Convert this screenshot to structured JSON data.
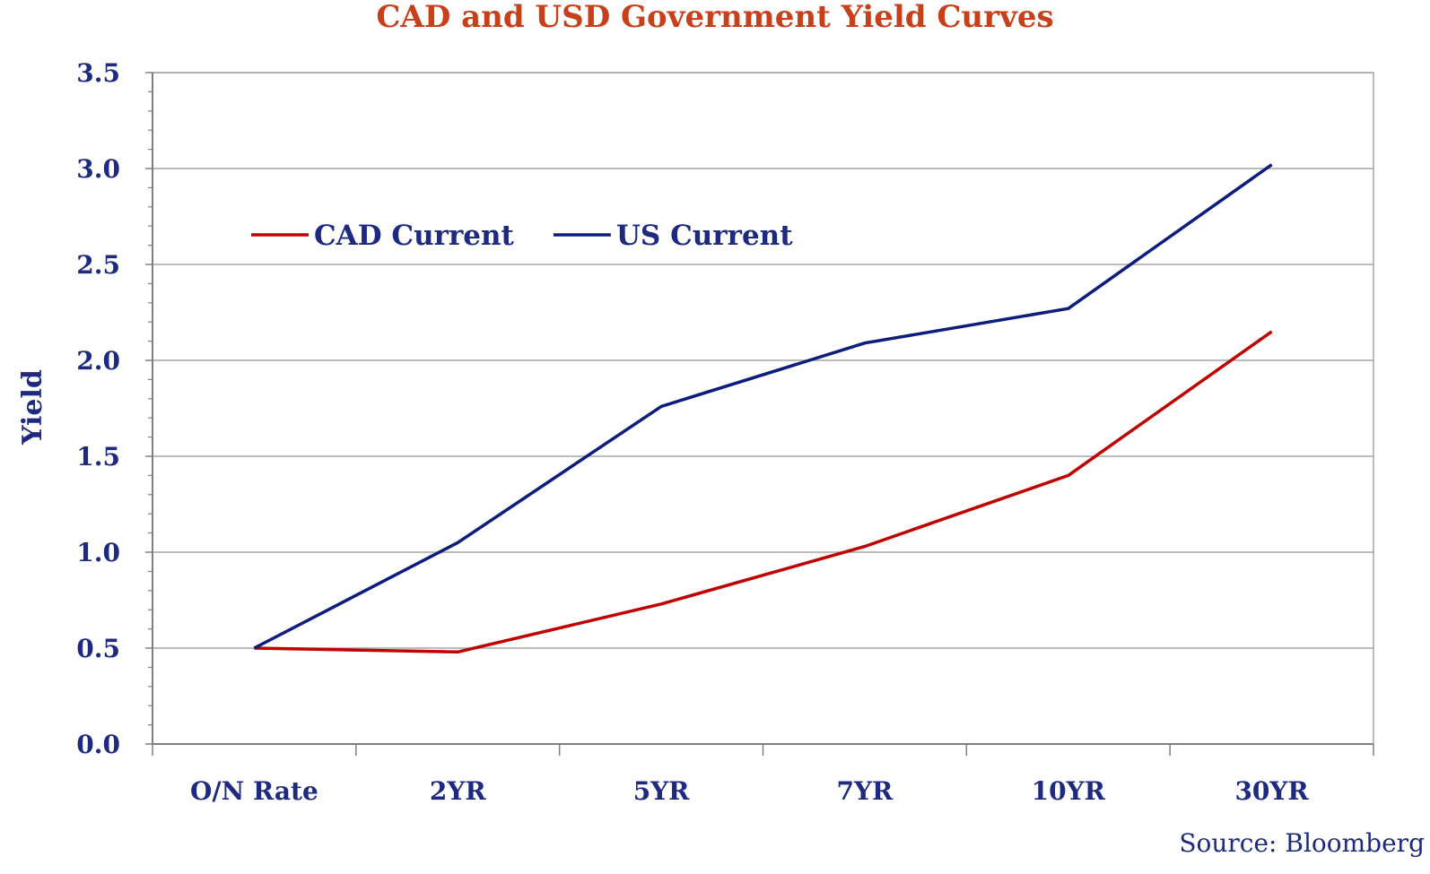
{
  "chart_data": {
    "type": "line",
    "title": "CAD and USD Government Yield Curves",
    "ylabel": "Yield",
    "xlabel": "",
    "categories": [
      "O/N Rate",
      "2YR",
      "5YR",
      "7YR",
      "10YR",
      "30YR"
    ],
    "ylim": [
      0,
      3.5
    ],
    "yticks": [
      "0.0",
      "0.5",
      "1.0",
      "1.5",
      "2.0",
      "2.5",
      "3.0",
      "3.5"
    ],
    "grid": true,
    "legend_position": "top-left",
    "series": [
      {
        "name": "CAD Current",
        "color": "#c00000",
        "values": [
          0.5,
          0.48,
          0.73,
          1.03,
          1.4,
          2.15
        ]
      },
      {
        "name": "US Current",
        "color": "#0c1d7e",
        "values": [
          0.5,
          1.05,
          1.76,
          2.09,
          2.27,
          3.02
        ]
      }
    ],
    "source": "Source: Bloomberg"
  }
}
